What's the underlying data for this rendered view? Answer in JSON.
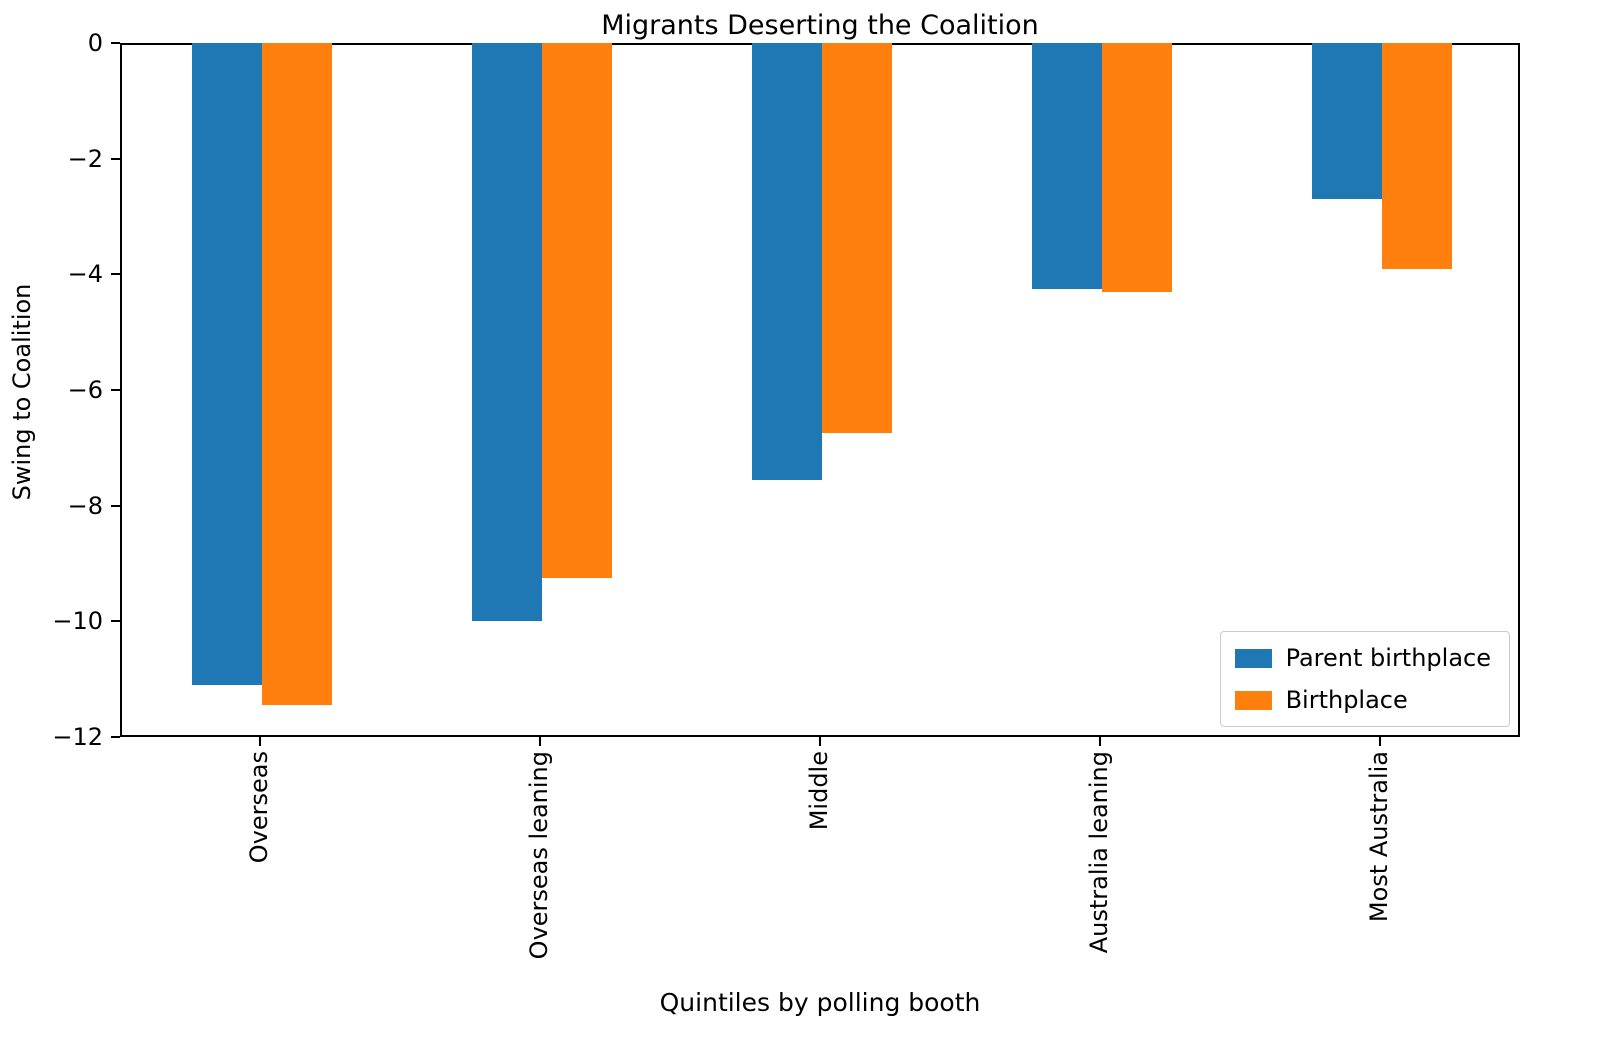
{
  "chart_data": {
    "type": "bar",
    "title": "Migrants Deserting the Coalition",
    "xlabel": "Quintiles by polling booth",
    "ylabel": "Swing to Coalition",
    "categories": [
      "Overseas",
      "Overseas leaning",
      "Middle",
      "Australia leaning",
      "Most Australia"
    ],
    "series": [
      {
        "name": "Parent birthplace",
        "color": "#1f77b4",
        "values": [
          -11.1,
          -10.0,
          -7.55,
          -4.25,
          -2.7
        ]
      },
      {
        "name": "Birthplace",
        "color": "#ff7f0e",
        "values": [
          -11.45,
          -9.25,
          -6.75,
          -4.3,
          -3.9
        ]
      }
    ],
    "ylim": [
      -12,
      0
    ],
    "yticks": [
      0,
      -2,
      -4,
      -6,
      -8,
      -10,
      -12
    ],
    "grid": false,
    "legend_position": "lower right"
  }
}
